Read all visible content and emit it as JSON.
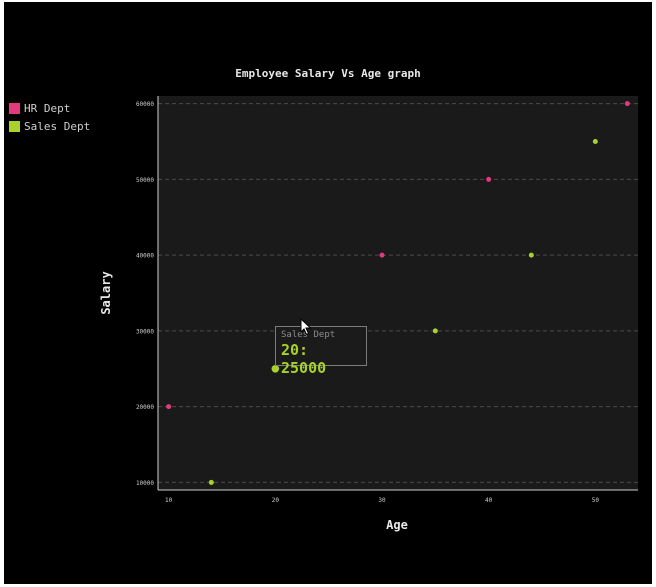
{
  "chart_data": {
    "type": "scatter",
    "title": "Employee Salary Vs Age graph",
    "xlabel": "Age",
    "ylabel": "Salary",
    "xlim": [
      9,
      54
    ],
    "ylim": [
      9000,
      61000
    ],
    "x_ticks": [
      10,
      20,
      30,
      40,
      50
    ],
    "y_ticks": [
      10000,
      20000,
      30000,
      40000,
      50000,
      60000
    ],
    "grid": true,
    "legend_position": "top-left",
    "series": [
      {
        "name": "HR Dept",
        "color": "#e23a7c",
        "points": [
          [
            10,
            20000
          ],
          [
            30,
            40000
          ],
          [
            40,
            50000
          ],
          [
            53,
            60000
          ]
        ]
      },
      {
        "name": "Sales Dept",
        "color": "#a9d12c",
        "points": [
          [
            14,
            10000
          ],
          [
            20,
            25000
          ],
          [
            35,
            30000
          ],
          [
            44,
            40000
          ],
          [
            50,
            55000
          ]
        ]
      }
    ],
    "tooltip": {
      "series": "Sales Dept",
      "text": "20: 25000"
    }
  }
}
